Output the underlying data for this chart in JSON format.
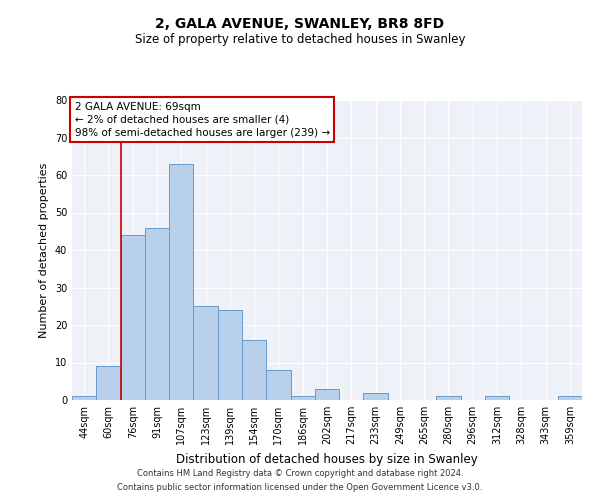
{
  "title_line1": "2, GALA AVENUE, SWANLEY, BR8 8FD",
  "title_line2": "Size of property relative to detached houses in Swanley",
  "xlabel": "Distribution of detached houses by size in Swanley",
  "ylabel": "Number of detached properties",
  "categories": [
    "44sqm",
    "60sqm",
    "76sqm",
    "91sqm",
    "107sqm",
    "123sqm",
    "139sqm",
    "154sqm",
    "170sqm",
    "186sqm",
    "202sqm",
    "217sqm",
    "233sqm",
    "249sqm",
    "265sqm",
    "280sqm",
    "296sqm",
    "312sqm",
    "328sqm",
    "343sqm",
    "359sqm"
  ],
  "values": [
    1,
    9,
    44,
    46,
    63,
    25,
    24,
    16,
    8,
    1,
    3,
    0,
    2,
    0,
    0,
    1,
    0,
    1,
    0,
    0,
    1
  ],
  "bar_color": "#b8d0ea",
  "bar_edge_color": "#6699cc",
  "ylim": [
    0,
    80
  ],
  "yticks": [
    0,
    10,
    20,
    30,
    40,
    50,
    60,
    70,
    80
  ],
  "red_line_x": 1.5,
  "annotation_title": "2 GALA AVENUE: 69sqm",
  "annotation_line1": "← 2% of detached houses are smaller (4)",
  "annotation_line2": "98% of semi-detached houses are larger (239) →",
  "annotation_box_color": "#ffffff",
  "annotation_box_edge": "#cc0000",
  "footnote_line1": "Contains HM Land Registry data © Crown copyright and database right 2024.",
  "footnote_line2": "Contains public sector information licensed under the Open Government Licence v3.0.",
  "background_color": "#eef2f8",
  "grid_color": "#ffffff",
  "title1_fontsize": 10,
  "title2_fontsize": 8.5,
  "ylabel_fontsize": 8,
  "xlabel_fontsize": 8.5,
  "tick_fontsize": 7,
  "annot_fontsize": 7.5,
  "footnote_fontsize": 6
}
